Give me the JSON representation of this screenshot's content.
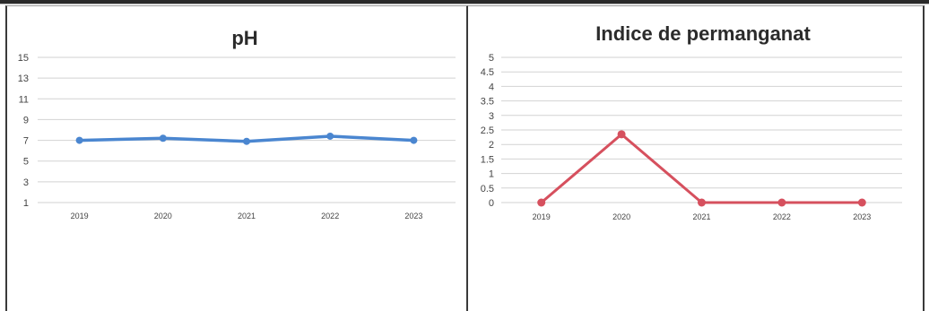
{
  "charts": {
    "ph": {
      "title": "pH"
    },
    "permanganat": {
      "title": "Indice de permanganat"
    }
  },
  "chart_data": [
    {
      "type": "line",
      "title": "pH",
      "categories": [
        "2019",
        "2020",
        "2021",
        "2022",
        "2023"
      ],
      "values": [
        7.0,
        7.2,
        6.9,
        7.4,
        7.0
      ],
      "ylim": [
        1,
        15
      ],
      "yticks": [
        "1",
        "3",
        "5",
        "7",
        "9",
        "11",
        "13",
        "15"
      ],
      "grid": true,
      "color": "#4a86d0"
    },
    {
      "type": "line",
      "title": "Indice de permanganat",
      "categories": [
        "2019",
        "2020",
        "2021",
        "2022",
        "2023"
      ],
      "values": [
        0,
        2.35,
        0,
        0,
        0
      ],
      "ylim": [
        0,
        5
      ],
      "yticks": [
        "0",
        "0.5",
        "1",
        "1.5",
        "2",
        "2.5",
        "3",
        "3.5",
        "4",
        "4.5",
        "5"
      ],
      "grid": true,
      "color": "#d6505e"
    }
  ]
}
